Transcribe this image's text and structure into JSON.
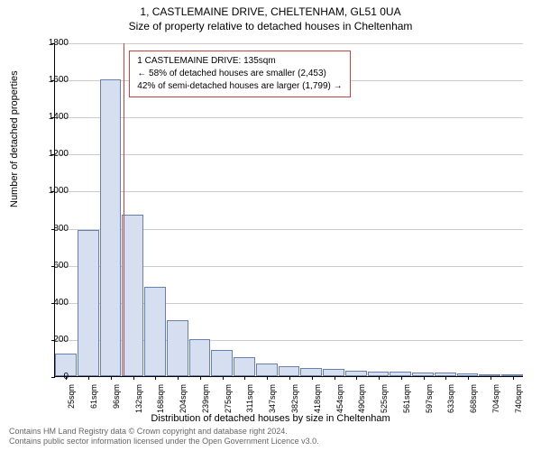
{
  "title": {
    "line1": "1, CASTLEMAINE DRIVE, CHELTENHAM, GL51 0UA",
    "line2": "Size of property relative to detached houses in Cheltenham"
  },
  "chart": {
    "type": "histogram",
    "ylabel": "Number of detached properties",
    "xlabel": "Distribution of detached houses by size in Cheltenham",
    "ylim": [
      0,
      1800
    ],
    "ytick_step": 200,
    "yticks": [
      0,
      200,
      400,
      600,
      800,
      1000,
      1200,
      1400,
      1600,
      1800
    ],
    "xticks": [
      "25sqm",
      "61sqm",
      "96sqm",
      "132sqm",
      "168sqm",
      "204sqm",
      "239sqm",
      "275sqm",
      "311sqm",
      "347sqm",
      "382sqm",
      "418sqm",
      "454sqm",
      "490sqm",
      "525sqm",
      "561sqm",
      "597sqm",
      "633sqm",
      "668sqm",
      "704sqm",
      "740sqm"
    ],
    "bar_values": [
      120,
      790,
      1600,
      870,
      480,
      300,
      200,
      140,
      100,
      70,
      55,
      45,
      40,
      30,
      25,
      22,
      20,
      18,
      15,
      12,
      10
    ],
    "bar_fill": "#d5dff0",
    "bar_stroke": "#6880b0",
    "grid_color": "#cccccc",
    "background_color": "#ffffff",
    "marker_color": "#d04040",
    "marker_x_index": 3
  },
  "annotation": {
    "line1": "1 CASTLEMAINE DRIVE: 135sqm",
    "line2": "← 58% of detached houses are smaller (2,453)",
    "line3": "42% of semi-detached houses are larger (1,799) →"
  },
  "footer": {
    "line1": "Contains HM Land Registry data © Crown copyright and database right 2024.",
    "line2": "Contains public sector information licensed under the Open Government Licence v3.0."
  }
}
